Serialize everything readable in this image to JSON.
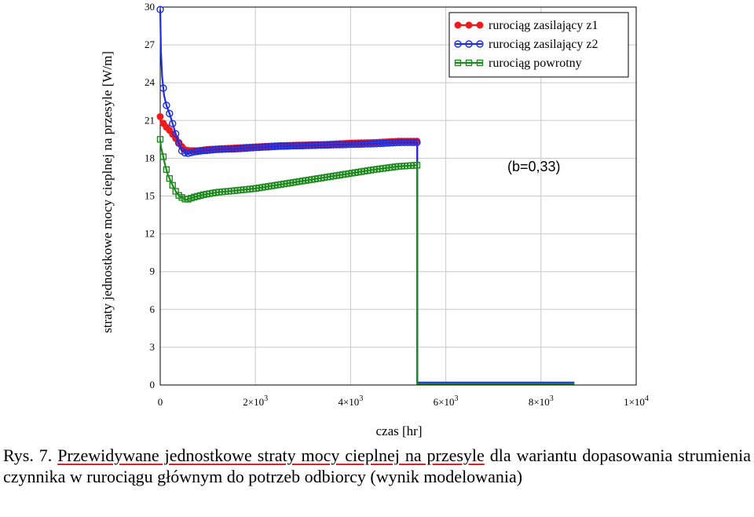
{
  "chart_data": {
    "type": "line",
    "ylabel": "straty jednostkowe mocy cieplnej na przesyle [W/m]",
    "xlabel": "czas [hr]",
    "xlim": [
      0,
      10000
    ],
    "ylim": [
      0,
      30
    ],
    "grid": true,
    "legend_position": "top-right",
    "x_ticks": [
      {
        "value": 0,
        "mant": "0",
        "exp": ""
      },
      {
        "value": 2000,
        "mant": "2×10",
        "exp": "3"
      },
      {
        "value": 4000,
        "mant": "4×10",
        "exp": "3"
      },
      {
        "value": 6000,
        "mant": "6×10",
        "exp": "3"
      },
      {
        "value": 8000,
        "mant": "8×10",
        "exp": "3"
      },
      {
        "value": 10000,
        "mant": "1×10",
        "exp": "4"
      }
    ],
    "y_ticks": [
      0,
      3,
      6,
      9,
      12,
      15,
      18,
      21,
      24,
      27,
      30
    ],
    "annotation": "(b=0,33)",
    "series": [
      {
        "name": "rurociąg zasilający z1",
        "color": "#ee1c1c",
        "marker": "filled-circle",
        "x": [
          0,
          20,
          60,
          120,
          200,
          300,
          400,
          500,
          600,
          800,
          1000,
          1500,
          2000,
          2500,
          3000,
          3500,
          4000,
          4500,
          5000,
          5400,
          5401,
          8700
        ],
        "y": [
          21.3,
          21.0,
          20.8,
          20.5,
          20.2,
          19.7,
          19.2,
          18.7,
          18.6,
          18.6,
          18.7,
          18.8,
          18.9,
          19.0,
          19.05,
          19.1,
          19.2,
          19.25,
          19.35,
          19.35,
          0.15,
          0.15
        ]
      },
      {
        "name": "rurociąg zasilający z2",
        "color": "#1c2ee0",
        "marker": "open-circle",
        "x": [
          0,
          15,
          40,
          80,
          130,
          200,
          280,
          360,
          450,
          550,
          700,
          900,
          1200,
          1600,
          2000,
          2500,
          3000,
          3500,
          4000,
          4500,
          5000,
          5400,
          5401,
          8700
        ],
        "y": [
          29.8,
          26.5,
          24.5,
          23.0,
          22.2,
          21.5,
          20.5,
          19.5,
          18.6,
          18.35,
          18.5,
          18.6,
          18.7,
          18.75,
          18.85,
          18.95,
          19.0,
          19.05,
          19.1,
          19.15,
          19.25,
          19.25,
          0.2,
          0.2
        ]
      },
      {
        "name": "rurociąg powrotny",
        "color": "#1e8a1e",
        "marker": "open-square",
        "x": [
          0,
          20,
          60,
          100,
          160,
          240,
          320,
          400,
          500,
          550,
          700,
          900,
          1200,
          1500,
          2000,
          2500,
          3000,
          3500,
          4000,
          4500,
          5000,
          5400,
          5401,
          8700
        ],
        "y": [
          19.5,
          18.8,
          18.2,
          17.5,
          16.7,
          16.0,
          15.4,
          15.0,
          14.8,
          14.7,
          14.9,
          15.1,
          15.3,
          15.4,
          15.6,
          15.9,
          16.2,
          16.5,
          16.8,
          17.1,
          17.35,
          17.45,
          0.1,
          0.1
        ]
      }
    ]
  },
  "caption": {
    "prefix": "Rys. 7. ",
    "underlined": "Przewidywane jednostkowe straty mocy cieplnej na przesyle",
    "rest": " dla wariantu dopasowania strumienia czynnika w rurociągu głównym do potrzeb odbiorcy (wynik modelowania)"
  }
}
